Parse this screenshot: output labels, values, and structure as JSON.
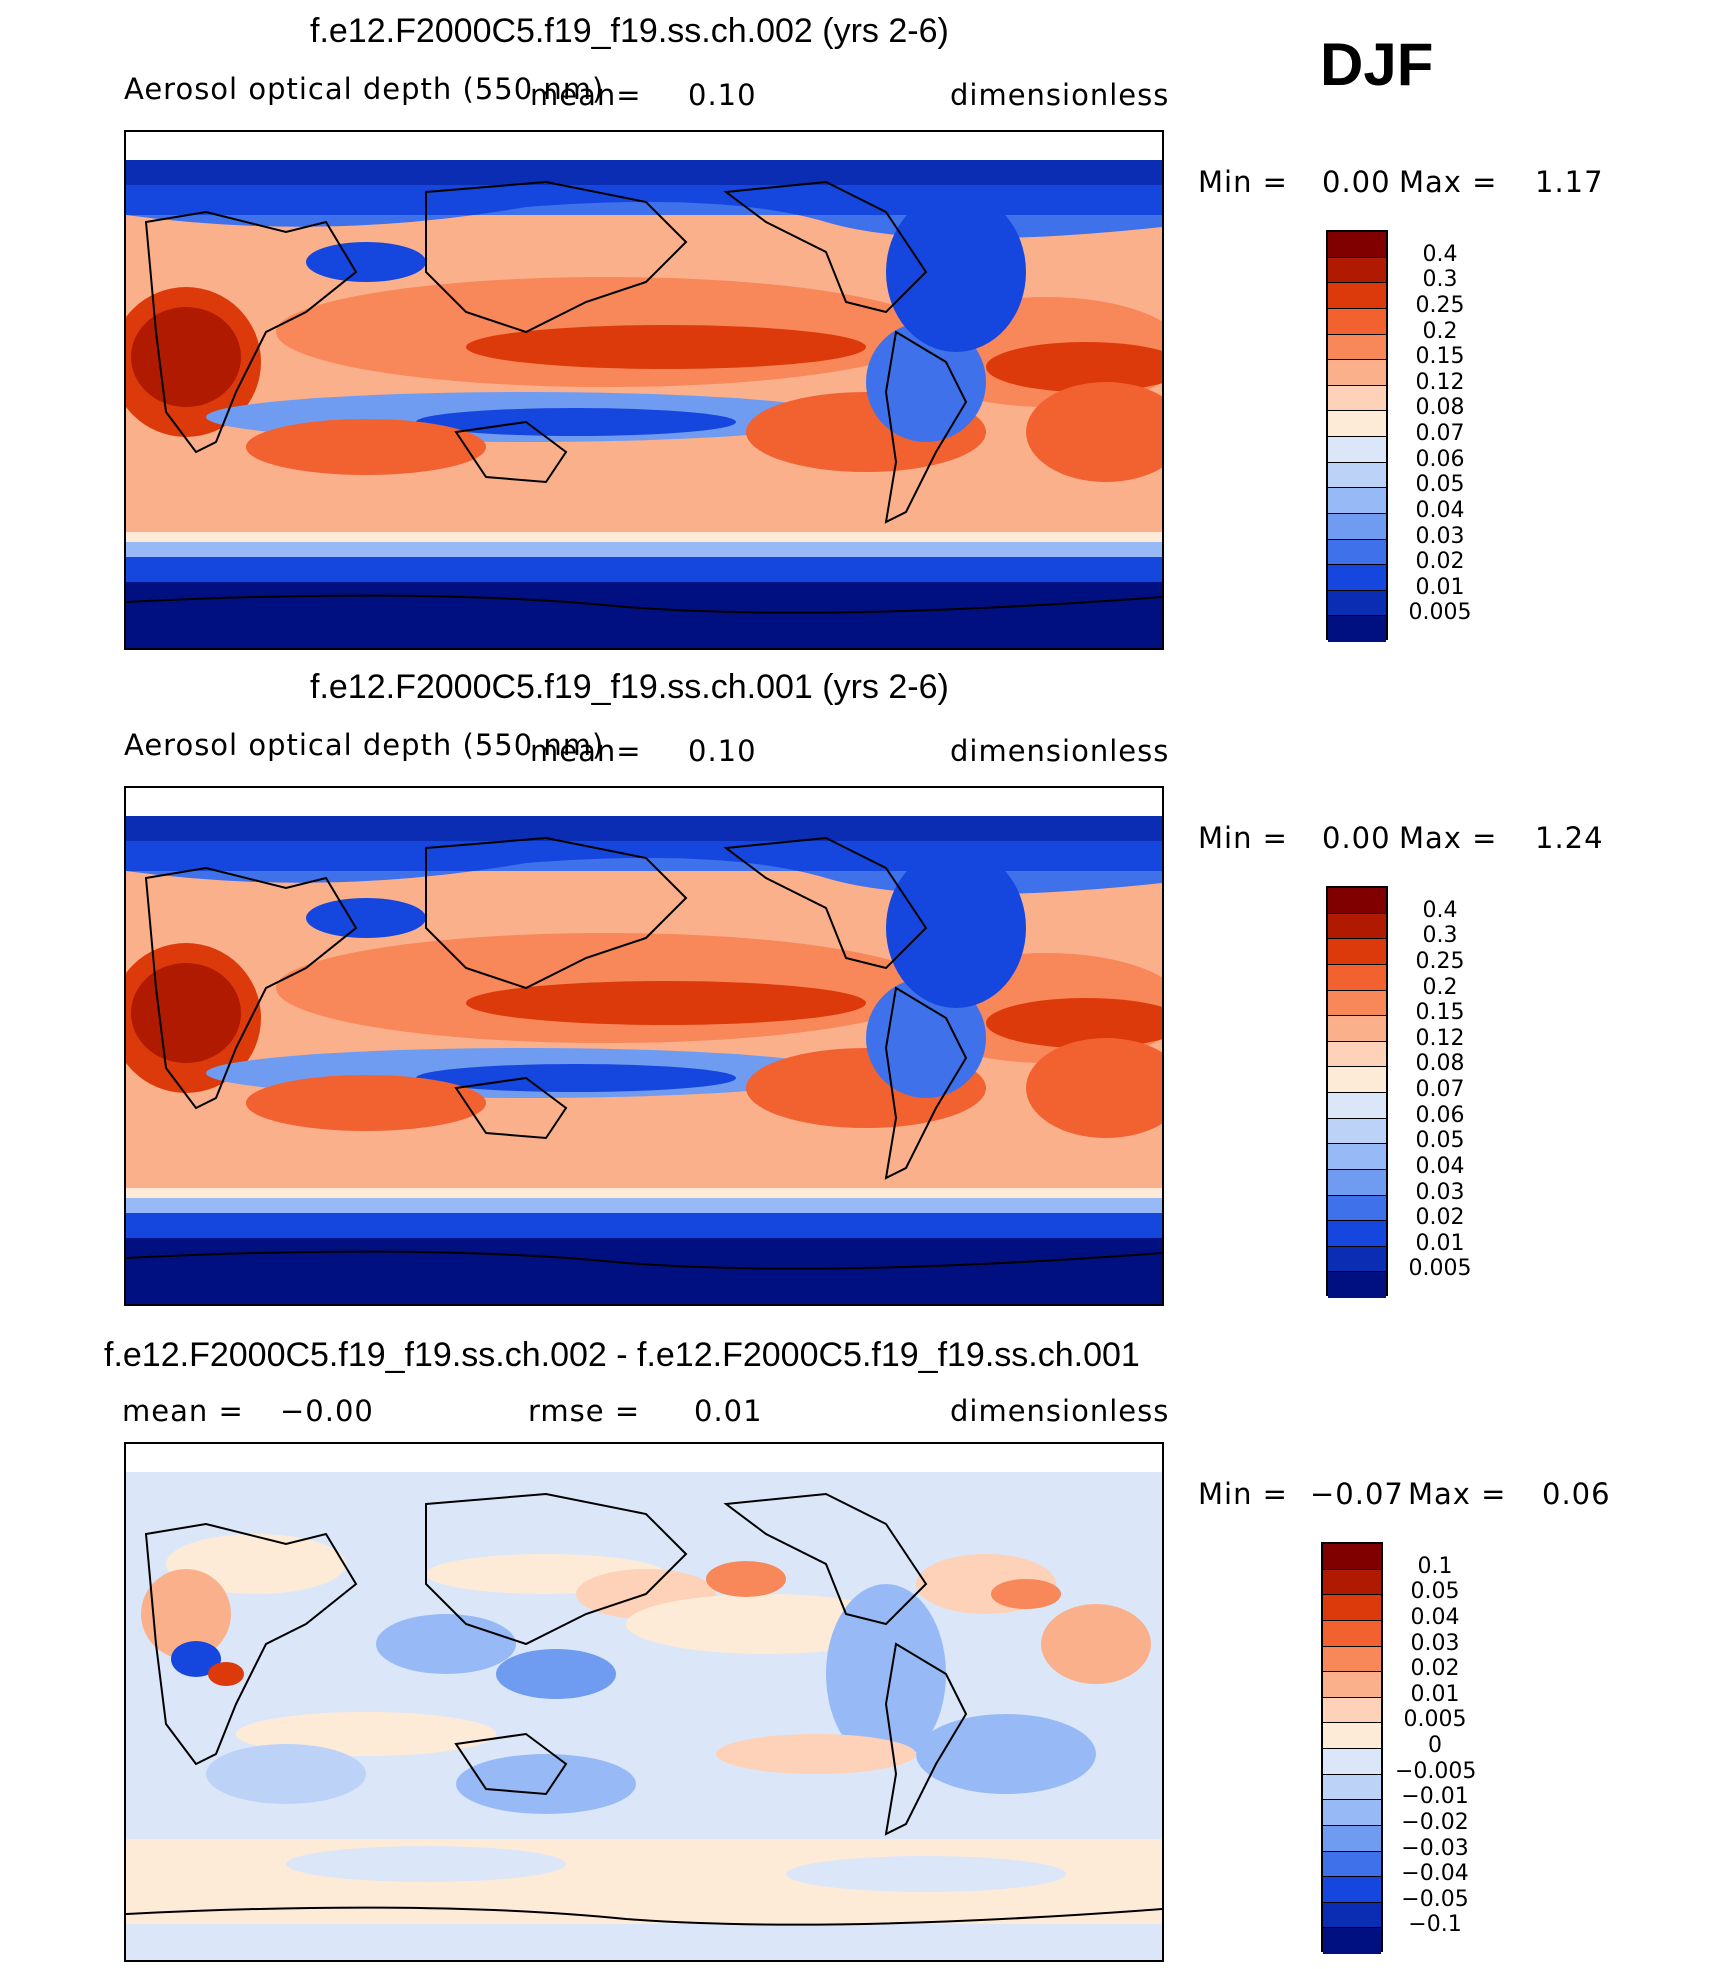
{
  "season": "DJF",
  "panels": [
    {
      "id": "p1",
      "title": "f.e12.F2000C5.f19_f19.ss.ch.002 (yrs 2-6)",
      "left_label": "Aerosol optical depth (550 nm)",
      "mean_label": "mean=",
      "mean_value": "0.10",
      "units": "dimensionless",
      "min_label": "Min =",
      "min_value": "0.00",
      "max_label": "Max =",
      "max_value": "1.17",
      "colorbar": {
        "labels": [
          "0.4",
          "0.3",
          "0.25",
          "0.2",
          "0.15",
          "0.12",
          "0.08",
          "0.07",
          "0.06",
          "0.05",
          "0.04",
          "0.03",
          "0.02",
          "0.01",
          "0.005"
        ],
        "colors": [
          "#800000",
          "#b01a00",
          "#dc3a0a",
          "#f26130",
          "#f8875a",
          "#fbb08c",
          "#fdd2b8",
          "#fdebd8",
          "#dbe7f8",
          "#bcd3f7",
          "#97baf6",
          "#6f9cf0",
          "#3f72ea",
          "#1546de",
          "#0a2db4",
          "#001080"
        ]
      }
    },
    {
      "id": "p2",
      "title": "f.e12.F2000C5.f19_f19.ss.ch.001 (yrs 2-6)",
      "left_label": "Aerosol optical depth (550 nm)",
      "mean_label": "mean=",
      "mean_value": "0.10",
      "units": "dimensionless",
      "min_label": "Min =",
      "min_value": "0.00",
      "max_label": "Max =",
      "max_value": "1.24",
      "colorbar": {
        "labels": [
          "0.4",
          "0.3",
          "0.25",
          "0.2",
          "0.15",
          "0.12",
          "0.08",
          "0.07",
          "0.06",
          "0.05",
          "0.04",
          "0.03",
          "0.02",
          "0.01",
          "0.005"
        ],
        "colors": [
          "#800000",
          "#b01a00",
          "#dc3a0a",
          "#f26130",
          "#f8875a",
          "#fbb08c",
          "#fdd2b8",
          "#fdebd8",
          "#dbe7f8",
          "#bcd3f7",
          "#97baf6",
          "#6f9cf0",
          "#3f72ea",
          "#1546de",
          "#0a2db4",
          "#001080"
        ]
      }
    },
    {
      "id": "p3",
      "title": "f.e12.F2000C5.f19_f19.ss.ch.002 - f.e12.F2000C5.f19_f19.ss.ch.001",
      "mean_label": "mean =",
      "mean_value": "−0.00",
      "rmse_label": "rmse =",
      "rmse_value": "0.01",
      "units": "dimensionless",
      "min_label": "Min =",
      "min_value": "−0.07",
      "max_label": "Max =",
      "max_value": "0.06",
      "colorbar": {
        "labels": [
          "0.1",
          "0.05",
          "0.04",
          "0.03",
          "0.02",
          "0.01",
          "0.005",
          "0",
          "−0.005",
          "−0.01",
          "−0.02",
          "−0.03",
          "−0.04",
          "−0.05",
          "−0.1"
        ],
        "colors": [
          "#800000",
          "#b01a00",
          "#dc3a0a",
          "#f26130",
          "#f8875a",
          "#fbb08c",
          "#fdd2b8",
          "#fdebd8",
          "#dbe7f8",
          "#bcd3f7",
          "#97baf6",
          "#6f9cf0",
          "#3f72ea",
          "#1546de",
          "#0a2db4",
          "#001080"
        ]
      }
    }
  ]
}
